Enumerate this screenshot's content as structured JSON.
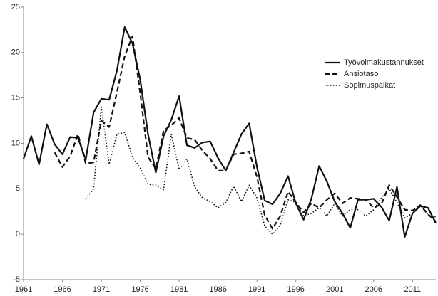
{
  "chart_data": {
    "type": "line",
    "x": [
      1961,
      1962,
      1963,
      1964,
      1965,
      1966,
      1967,
      1968,
      1969,
      1970,
      1971,
      1972,
      1973,
      1974,
      1975,
      1976,
      1977,
      1978,
      1979,
      1980,
      1981,
      1982,
      1983,
      1984,
      1985,
      1986,
      1987,
      1988,
      1989,
      1990,
      1991,
      1992,
      1993,
      1994,
      1995,
      1996,
      1997,
      1998,
      1999,
      2000,
      2001,
      2002,
      2003,
      2004,
      2005,
      2006,
      2007,
      2008,
      2009,
      2010,
      2011,
      2012,
      2013,
      2014
    ],
    "series": [
      {
        "name": "Työvoimakustannukset",
        "color": "#111111",
        "dash": "solid",
        "values": [
          8.3,
          10.8,
          7.7,
          12.1,
          9.9,
          8.8,
          10.7,
          10.6,
          8.2,
          13.4,
          14.9,
          14.8,
          18.0,
          22.8,
          21.0,
          17.0,
          11.0,
          6.8,
          10.8,
          12.6,
          15.2,
          9.8,
          9.5,
          10.1,
          10.2,
          8.4,
          7.0,
          9.0,
          11.0,
          12.2,
          7.4,
          3.7,
          3.3,
          4.5,
          6.4,
          3.4,
          1.6,
          3.9,
          7.5,
          5.8,
          3.6,
          2.3,
          0.7,
          3.8,
          3.8,
          3.9,
          3.0,
          1.5,
          5.2,
          -0.3,
          2.3,
          3.1,
          2.9,
          1.2
        ]
      },
      {
        "name": "Ansiotaso",
        "color": "#111111",
        "dash": "dashed",
        "values": [
          null,
          null,
          null,
          null,
          9.0,
          7.4,
          8.6,
          11.0,
          7.8,
          7.9,
          12.5,
          11.8,
          15.6,
          19.6,
          21.8,
          15.5,
          8.5,
          7.2,
          11.4,
          12.0,
          12.8,
          10.6,
          10.4,
          9.2,
          8.3,
          7.0,
          7.0,
          8.8,
          8.9,
          9.1,
          6.3,
          2.1,
          0.6,
          2.0,
          4.7,
          3.5,
          2.4,
          3.4,
          2.9,
          3.8,
          4.5,
          3.4,
          4.0,
          3.9,
          3.8,
          2.9,
          3.3,
          5.4,
          4.1,
          2.7,
          2.6,
          3.2,
          2.2,
          1.4
        ]
      },
      {
        "name": "Sopimuspalkat",
        "color": "#111111",
        "dash": "dotted",
        "values": [
          null,
          null,
          null,
          null,
          null,
          null,
          null,
          null,
          3.9,
          5.0,
          14.0,
          7.7,
          11.0,
          11.2,
          8.5,
          7.3,
          5.5,
          5.4,
          4.9,
          11.0,
          7.1,
          8.3,
          5.2,
          4.0,
          3.6,
          2.9,
          3.5,
          5.3,
          3.6,
          5.4,
          4.0,
          0.9,
          0.0,
          1.0,
          3.8,
          3.5,
          2.0,
          2.3,
          2.9,
          2.0,
          3.4,
          2.0,
          2.7,
          2.7,
          2.0,
          2.7,
          4.0,
          5.0,
          3.5,
          1.8,
          2.3,
          3.2,
          2.1,
          1.9
        ]
      }
    ],
    "xlim": [
      1961,
      2014
    ],
    "xticks": [
      1961,
      1966,
      1971,
      1976,
      1981,
      1986,
      1991,
      1996,
      2001,
      2006,
      2011
    ],
    "ylim": [
      -5,
      25
    ],
    "yticks": [
      -5,
      0,
      5,
      10,
      15,
      20,
      25
    ],
    "grid": false,
    "legend": "upper right"
  }
}
